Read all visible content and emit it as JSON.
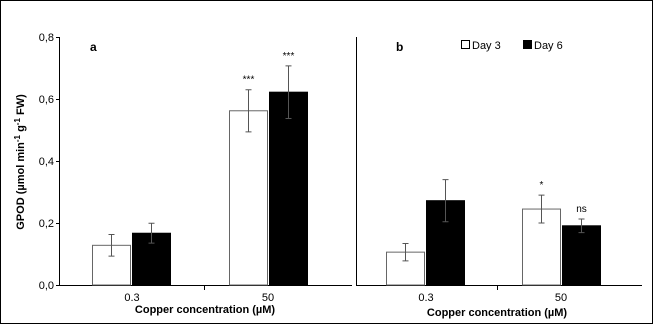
{
  "chart_data": {
    "type": "bar",
    "ylabel_main": "GPOD (",
    "ylabel_unit": "µmol min",
    "ylabel_exp1": "-1",
    "ylabel_mid": " g",
    "ylabel_exp2": "-1",
    "ylabel_tail": " FW)",
    "yticks": [
      "0,0",
      "0,2",
      "0,4",
      "0,6",
      "0,8"
    ],
    "ylim": [
      0,
      0.8
    ],
    "legend": {
      "entries": [
        "Day 3",
        "Day 6"
      ],
      "colors": [
        "#ffffff",
        "#000000"
      ]
    },
    "panels": [
      {
        "label": "a",
        "xlabel": "Copper concentration (µM)",
        "categories": [
          "0.3",
          "50"
        ],
        "series": [
          {
            "name": "Day 3",
            "values": [
              0.128,
              0.562
            ],
            "errors": [
              0.035,
              0.068
            ],
            "color": "#ffffff"
          },
          {
            "name": "Day 6",
            "values": [
              0.167,
              0.622
            ],
            "errors": [
              0.032,
              0.085
            ],
            "color": "#000000"
          }
        ],
        "annotations": [
          {
            "category": 1,
            "series": 0,
            "text": "***"
          },
          {
            "category": 1,
            "series": 1,
            "text": "***"
          }
        ]
      },
      {
        "label": "b",
        "xlabel": "Copper concentration (µM)",
        "categories": [
          "0.3",
          "50"
        ],
        "series": [
          {
            "name": "Day 3",
            "values": [
              0.106,
              0.245
            ],
            "errors": [
              0.028,
              0.045
            ],
            "color": "#ffffff"
          },
          {
            "name": "Day 6",
            "values": [
              0.272,
              0.191
            ],
            "errors": [
              0.068,
              0.022
            ],
            "color": "#000000"
          }
        ],
        "annotations": [
          {
            "category": 1,
            "series": 0,
            "text": "*"
          },
          {
            "category": 1,
            "series": 1,
            "text": "ns"
          }
        ]
      }
    ]
  }
}
